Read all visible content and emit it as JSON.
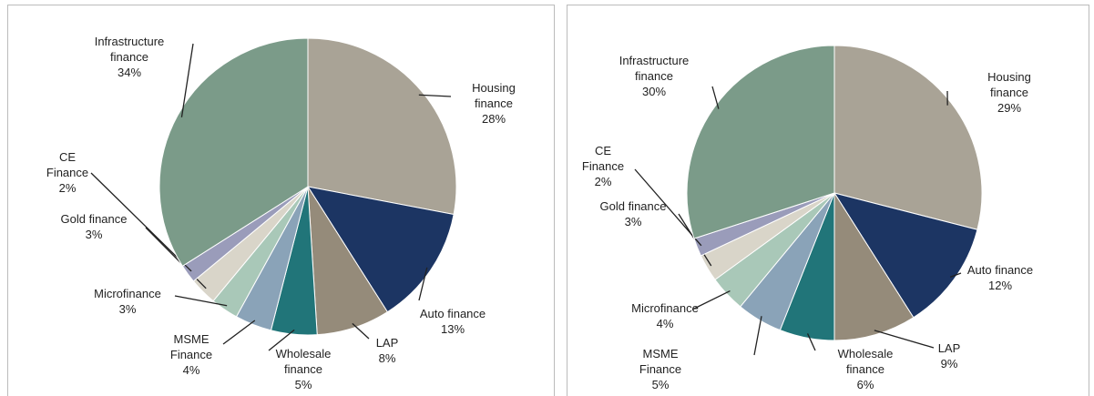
{
  "chart_data": [
    {
      "type": "pie",
      "categories": [
        "Housing finance",
        "Auto finance",
        "LAP",
        "Wholesale finance",
        "MSME Finance",
        "Microfinance",
        "Gold finance",
        "CE Finance",
        "Infrastructure finance"
      ],
      "values": [
        28,
        13,
        8,
        5,
        4,
        3,
        3,
        2,
        34
      ],
      "value_labels": [
        "28%",
        "13%",
        "8%",
        "5%",
        "4%",
        "3%",
        "3%",
        "2%",
        "34%"
      ],
      "colors": [
        "#a9a396",
        "#1c3563",
        "#958b7a",
        "#217579",
        "#8aa3b8",
        "#a9c8b8",
        "#d9d5c9",
        "#9a9cba",
        "#7b9b89"
      ]
    },
    {
      "type": "pie",
      "categories": [
        "Housing finance",
        "Auto finance",
        "LAP",
        "Wholesale finance",
        "MSME Finance",
        "Microfinance",
        "Gold finance",
        "CE Finance",
        "Infrastructure finance"
      ],
      "values": [
        29,
        12,
        9,
        6,
        5,
        4,
        3,
        2,
        30
      ],
      "value_labels": [
        "29%",
        "12%",
        "9%",
        "6%",
        "5%",
        "4%",
        "3%",
        "2%",
        "30%"
      ],
      "colors": [
        "#a9a396",
        "#1c3563",
        "#958b7a",
        "#217579",
        "#8aa3b8",
        "#a9c8b8",
        "#d9d5c9",
        "#9a9cba",
        "#7b9b89"
      ]
    }
  ]
}
